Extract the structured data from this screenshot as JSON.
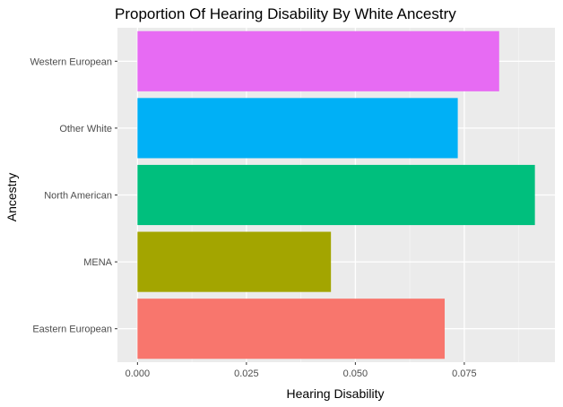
{
  "chart_data": {
    "type": "bar",
    "orientation": "horizontal",
    "title": "Proportion Of Hearing Disability By White Ancestry",
    "xlabel": "Hearing Disability",
    "ylabel": "Ancestry",
    "xlim": [
      -0.0046,
      0.0958
    ],
    "xticks": [
      0.0,
      0.025,
      0.05,
      0.075
    ],
    "xtick_labels": [
      "0.000",
      "0.025",
      "0.050",
      "0.075"
    ],
    "grid": true,
    "legend": "none",
    "categories": [
      "Eastern European",
      "MENA",
      "North American",
      "Other White",
      "Western European"
    ],
    "values": [
      0.0705,
      0.0444,
      0.0912,
      0.0735,
      0.083
    ],
    "colors": [
      "#F8766D",
      "#A3A500",
      "#00BF7D",
      "#00B0F6",
      "#E76BF3"
    ]
  }
}
